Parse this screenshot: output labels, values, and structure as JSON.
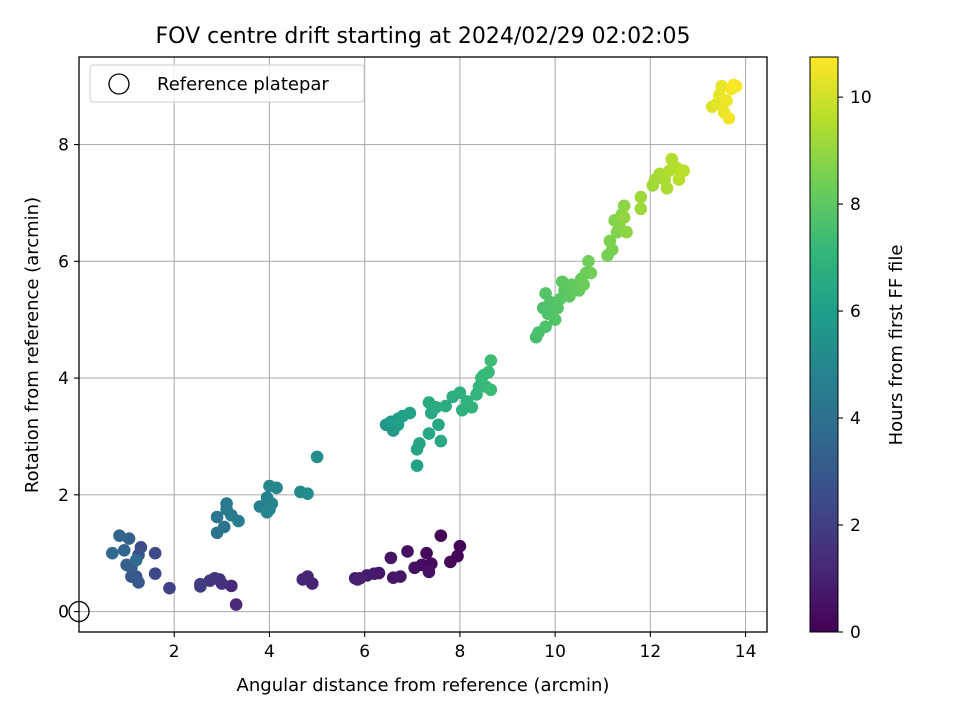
{
  "chart_data": {
    "type": "scatter",
    "title": "FOV centre drift starting at 2024/02/29 02:02:05",
    "xlabel": "Angular distance from reference (arcmin)",
    "ylabel": "Rotation from reference (arcmin)",
    "xlim": [
      0.0,
      14.45
    ],
    "ylim": [
      -0.35,
      9.5
    ],
    "xticks": [
      2,
      4,
      6,
      8,
      10,
      12,
      14
    ],
    "yticks": [
      0,
      2,
      4,
      6,
      8
    ],
    "grid": true,
    "legend": {
      "position": "upper-left",
      "entries": [
        "Reference platepar"
      ]
    },
    "reference_point": {
      "x": 0.0,
      "y": 0.0
    },
    "colorbar": {
      "label": "Hours from first FF file",
      "range": [
        0,
        10.75
      ],
      "ticks": [
        0,
        2,
        4,
        6,
        8,
        10
      ],
      "colormap": "viridis",
      "colors": [
        "#440154",
        "#482878",
        "#3e4989",
        "#31688e",
        "#26828e",
        "#1f9e89",
        "#35b779",
        "#6ece58",
        "#b5de2b",
        "#fde725"
      ]
    },
    "points": [
      {
        "x": 7.6,
        "y": 1.3,
        "h": 0.05
      },
      {
        "x": 8.0,
        "y": 1.12,
        "h": 0.1
      },
      {
        "x": 7.95,
        "y": 0.95,
        "h": 0.15
      },
      {
        "x": 7.8,
        "y": 0.85,
        "h": 0.2
      },
      {
        "x": 7.3,
        "y": 1.0,
        "h": 0.25
      },
      {
        "x": 7.4,
        "y": 0.82,
        "h": 0.3
      },
      {
        "x": 7.2,
        "y": 0.8,
        "h": 0.35
      },
      {
        "x": 7.05,
        "y": 0.75,
        "h": 0.4
      },
      {
        "x": 6.9,
        "y": 1.03,
        "h": 0.45
      },
      {
        "x": 7.35,
        "y": 0.68,
        "h": 0.5
      },
      {
        "x": 6.55,
        "y": 0.92,
        "h": 0.55
      },
      {
        "x": 6.75,
        "y": 0.6,
        "h": 0.6
      },
      {
        "x": 6.6,
        "y": 0.58,
        "h": 0.65
      },
      {
        "x": 6.3,
        "y": 0.66,
        "h": 0.7
      },
      {
        "x": 6.2,
        "y": 0.65,
        "h": 0.75
      },
      {
        "x": 6.05,
        "y": 0.62,
        "h": 0.8
      },
      {
        "x": 5.9,
        "y": 0.57,
        "h": 0.85
      },
      {
        "x": 5.8,
        "y": 0.57,
        "h": 0.9
      },
      {
        "x": 5.85,
        "y": 0.55,
        "h": 0.95
      },
      {
        "x": 4.9,
        "y": 0.48,
        "h": 1.05
      },
      {
        "x": 4.8,
        "y": 0.6,
        "h": 1.1
      },
      {
        "x": 4.7,
        "y": 0.55,
        "h": 1.15
      },
      {
        "x": 3.3,
        "y": 0.12,
        "h": 1.25
      },
      {
        "x": 3.2,
        "y": 0.44,
        "h": 1.35
      },
      {
        "x": 3.0,
        "y": 0.48,
        "h": 1.45
      },
      {
        "x": 2.95,
        "y": 0.55,
        "h": 1.55
      },
      {
        "x": 2.85,
        "y": 0.57,
        "h": 1.65
      },
      {
        "x": 2.75,
        "y": 0.53,
        "h": 1.75
      },
      {
        "x": 2.55,
        "y": 0.47,
        "h": 1.85
      },
      {
        "x": 2.55,
        "y": 0.43,
        "h": 1.95
      },
      {
        "x": 1.9,
        "y": 0.4,
        "h": 2.15
      },
      {
        "x": 1.6,
        "y": 0.65,
        "h": 2.35
      },
      {
        "x": 1.6,
        "y": 1.0,
        "h": 2.45
      },
      {
        "x": 1.3,
        "y": 1.1,
        "h": 2.6
      },
      {
        "x": 1.25,
        "y": 0.97,
        "h": 2.75
      },
      {
        "x": 1.2,
        "y": 0.6,
        "h": 2.85
      },
      {
        "x": 1.25,
        "y": 0.5,
        "h": 2.95
      },
      {
        "x": 1.1,
        "y": 0.6,
        "h": 3.05
      },
      {
        "x": 1.1,
        "y": 0.75,
        "h": 3.15
      },
      {
        "x": 1.0,
        "y": 0.8,
        "h": 3.25
      },
      {
        "x": 1.05,
        "y": 1.25,
        "h": 3.35
      },
      {
        "x": 0.85,
        "y": 1.3,
        "h": 3.45
      },
      {
        "x": 0.95,
        "y": 1.05,
        "h": 3.55
      },
      {
        "x": 0.7,
        "y": 1.0,
        "h": 3.65
      },
      {
        "x": 1.2,
        "y": 0.88,
        "h": 3.75
      },
      {
        "x": 2.9,
        "y": 1.35,
        "h": 4.0
      },
      {
        "x": 3.05,
        "y": 1.45,
        "h": 4.1
      },
      {
        "x": 2.9,
        "y": 1.62,
        "h": 4.2
      },
      {
        "x": 3.1,
        "y": 1.75,
        "h": 4.3
      },
      {
        "x": 3.1,
        "y": 1.85,
        "h": 4.4
      },
      {
        "x": 3.2,
        "y": 1.65,
        "h": 4.5
      },
      {
        "x": 3.35,
        "y": 1.55,
        "h": 4.55
      },
      {
        "x": 3.8,
        "y": 1.8,
        "h": 4.65
      },
      {
        "x": 3.95,
        "y": 1.95,
        "h": 4.7
      },
      {
        "x": 4.0,
        "y": 1.75,
        "h": 4.8
      },
      {
        "x": 3.95,
        "y": 1.7,
        "h": 4.85
      },
      {
        "x": 4.05,
        "y": 1.85,
        "h": 4.9
      },
      {
        "x": 4.0,
        "y": 2.15,
        "h": 5.0
      },
      {
        "x": 4.15,
        "y": 2.12,
        "h": 5.05
      },
      {
        "x": 4.65,
        "y": 2.05,
        "h": 5.15
      },
      {
        "x": 4.8,
        "y": 2.02,
        "h": 5.2
      },
      {
        "x": 5.0,
        "y": 2.65,
        "h": 5.35
      },
      {
        "x": 6.45,
        "y": 3.2,
        "h": 5.6
      },
      {
        "x": 6.6,
        "y": 3.1,
        "h": 5.7
      },
      {
        "x": 6.55,
        "y": 3.25,
        "h": 5.8
      },
      {
        "x": 6.7,
        "y": 3.3,
        "h": 5.9
      },
      {
        "x": 6.8,
        "y": 3.35,
        "h": 6.0
      },
      {
        "x": 6.7,
        "y": 3.2,
        "h": 6.05
      },
      {
        "x": 6.95,
        "y": 3.4,
        "h": 6.1
      },
      {
        "x": 7.1,
        "y": 2.5,
        "h": 6.2
      },
      {
        "x": 7.1,
        "y": 2.78,
        "h": 6.25
      },
      {
        "x": 7.15,
        "y": 2.88,
        "h": 6.3
      },
      {
        "x": 7.35,
        "y": 3.05,
        "h": 6.35
      },
      {
        "x": 7.55,
        "y": 3.2,
        "h": 6.4
      },
      {
        "x": 7.6,
        "y": 2.92,
        "h": 6.45
      },
      {
        "x": 7.4,
        "y": 3.4,
        "h": 6.5
      },
      {
        "x": 7.35,
        "y": 3.58,
        "h": 6.55
      },
      {
        "x": 7.5,
        "y": 3.5,
        "h": 6.6
      },
      {
        "x": 7.7,
        "y": 3.52,
        "h": 6.7
      },
      {
        "x": 7.85,
        "y": 3.68,
        "h": 6.75
      },
      {
        "x": 8.0,
        "y": 3.75,
        "h": 6.8
      },
      {
        "x": 8.05,
        "y": 3.45,
        "h": 6.85
      },
      {
        "x": 8.15,
        "y": 3.6,
        "h": 6.9
      },
      {
        "x": 8.25,
        "y": 3.5,
        "h": 6.95
      },
      {
        "x": 8.35,
        "y": 3.72,
        "h": 7.0
      },
      {
        "x": 8.4,
        "y": 3.85,
        "h": 7.05
      },
      {
        "x": 8.45,
        "y": 4.0,
        "h": 7.1
      },
      {
        "x": 8.5,
        "y": 4.05,
        "h": 7.15
      },
      {
        "x": 8.55,
        "y": 3.85,
        "h": 7.2
      },
      {
        "x": 8.6,
        "y": 4.1,
        "h": 7.25
      },
      {
        "x": 8.65,
        "y": 3.8,
        "h": 7.3
      },
      {
        "x": 8.65,
        "y": 4.3,
        "h": 7.35
      },
      {
        "x": 9.6,
        "y": 4.7,
        "h": 7.55
      },
      {
        "x": 9.65,
        "y": 4.78,
        "h": 7.6
      },
      {
        "x": 9.75,
        "y": 5.2,
        "h": 7.65
      },
      {
        "x": 9.8,
        "y": 4.88,
        "h": 7.7
      },
      {
        "x": 9.85,
        "y": 5.1,
        "h": 7.72
      },
      {
        "x": 9.9,
        "y": 5.3,
        "h": 7.75
      },
      {
        "x": 9.8,
        "y": 5.45,
        "h": 7.78
      },
      {
        "x": 10.0,
        "y": 5.0,
        "h": 7.8
      },
      {
        "x": 10.05,
        "y": 5.2,
        "h": 7.85
      },
      {
        "x": 10.1,
        "y": 5.35,
        "h": 7.9
      },
      {
        "x": 10.2,
        "y": 5.5,
        "h": 7.95
      },
      {
        "x": 10.15,
        "y": 5.65,
        "h": 8.0
      },
      {
        "x": 10.3,
        "y": 5.4,
        "h": 8.05
      },
      {
        "x": 10.35,
        "y": 5.6,
        "h": 8.1
      },
      {
        "x": 10.5,
        "y": 5.5,
        "h": 8.15
      },
      {
        "x": 10.55,
        "y": 5.7,
        "h": 8.2
      },
      {
        "x": 10.6,
        "y": 5.6,
        "h": 8.25
      },
      {
        "x": 10.65,
        "y": 5.8,
        "h": 8.3
      },
      {
        "x": 10.7,
        "y": 6.0,
        "h": 8.35
      },
      {
        "x": 10.75,
        "y": 5.8,
        "h": 8.4
      },
      {
        "x": 11.1,
        "y": 6.1,
        "h": 8.5
      },
      {
        "x": 11.2,
        "y": 6.2,
        "h": 8.55
      },
      {
        "x": 11.15,
        "y": 6.35,
        "h": 8.6
      },
      {
        "x": 11.3,
        "y": 6.5,
        "h": 8.65
      },
      {
        "x": 11.25,
        "y": 6.7,
        "h": 8.7
      },
      {
        "x": 11.35,
        "y": 6.6,
        "h": 8.75
      },
      {
        "x": 11.4,
        "y": 6.8,
        "h": 8.8
      },
      {
        "x": 11.45,
        "y": 6.95,
        "h": 8.85
      },
      {
        "x": 11.5,
        "y": 6.5,
        "h": 8.9
      },
      {
        "x": 11.45,
        "y": 6.75,
        "h": 8.95
      },
      {
        "x": 11.8,
        "y": 6.9,
        "h": 9.1
      },
      {
        "x": 11.8,
        "y": 7.1,
        "h": 9.15
      },
      {
        "x": 12.05,
        "y": 7.3,
        "h": 9.2
      },
      {
        "x": 12.1,
        "y": 7.4,
        "h": 9.25
      },
      {
        "x": 12.2,
        "y": 7.5,
        "h": 9.3
      },
      {
        "x": 12.3,
        "y": 7.4,
        "h": 9.35
      },
      {
        "x": 12.35,
        "y": 7.25,
        "h": 9.4
      },
      {
        "x": 12.4,
        "y": 7.55,
        "h": 9.45
      },
      {
        "x": 12.45,
        "y": 7.75,
        "h": 9.5
      },
      {
        "x": 12.55,
        "y": 7.6,
        "h": 9.55
      },
      {
        "x": 12.6,
        "y": 7.4,
        "h": 9.6
      },
      {
        "x": 12.7,
        "y": 7.55,
        "h": 9.65
      },
      {
        "x": 13.3,
        "y": 8.65,
        "h": 10.2
      },
      {
        "x": 13.4,
        "y": 8.7,
        "h": 10.3
      },
      {
        "x": 13.45,
        "y": 8.85,
        "h": 10.35
      },
      {
        "x": 13.5,
        "y": 9.0,
        "h": 10.4
      },
      {
        "x": 13.55,
        "y": 8.55,
        "h": 10.45
      },
      {
        "x": 13.6,
        "y": 8.75,
        "h": 10.5
      },
      {
        "x": 13.65,
        "y": 8.45,
        "h": 10.55
      },
      {
        "x": 13.7,
        "y": 8.95,
        "h": 10.6
      },
      {
        "x": 13.8,
        "y": 9.0,
        "h": 10.65
      },
      {
        "x": 13.75,
        "y": 9.02,
        "h": 10.7
      }
    ]
  }
}
